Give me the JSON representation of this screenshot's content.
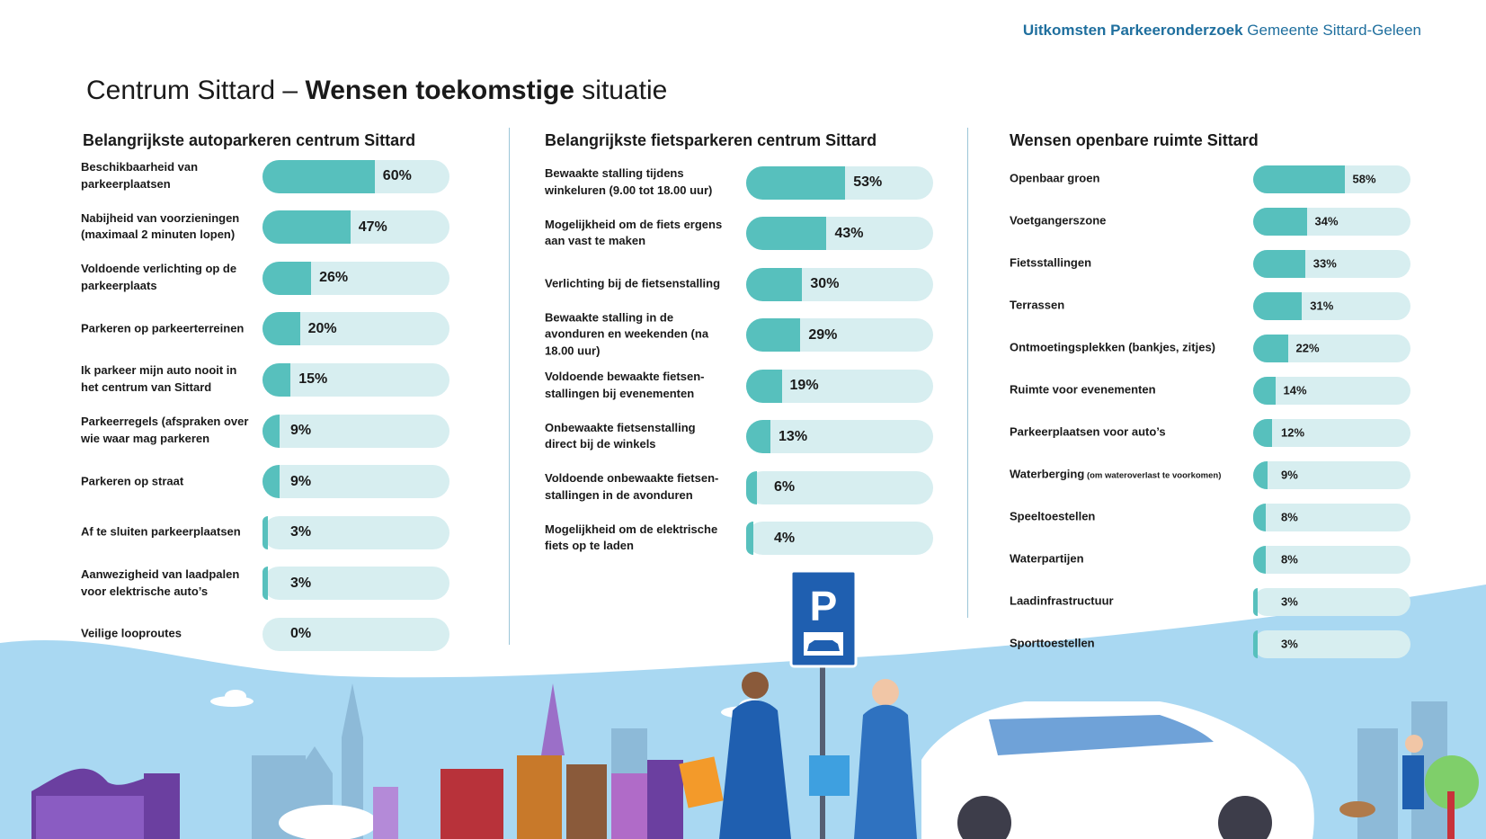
{
  "header": {
    "bold": "Uitkomsten Parkeeronderzoek",
    "regular": "Gemeente Sittard-Geleen"
  },
  "title": {
    "part1": "Centrum Sittard – ",
    "bold": "Wensen toekomstige",
    "part2": " situatie"
  },
  "colors": {
    "fill": "#57c0bd",
    "track": "#d7eef0",
    "header": "#1f6f9e",
    "sky": "#a9d8f2"
  },
  "chart_data": [
    {
      "type": "bar",
      "title": "Belangrijkste autoparkeren centrum Sittard",
      "categories": [
        "Beschikbaarheid van parkeerplaatsen",
        "Nabijheid van voorzieningen (maximaal 2 minuten lopen)",
        "Voldoende verlichting op de parkeerplaats",
        "Parkeren op parkeerterreinen",
        "Ik parkeer mijn auto nooit in het centrum van Sittard",
        "Parkeerregels (afspraken over wie waar mag parkeren",
        "Parkeren op straat",
        "Af te sluiten parkeerplaatsen",
        "Aanwezigheid van laadpalen voor elektrische auto’s",
        "Veilige looproutes"
      ],
      "values": [
        60,
        47,
        26,
        20,
        15,
        9,
        9,
        3,
        3,
        0
      ],
      "labels": [
        "60%",
        "47%",
        "26%",
        "20%",
        "15%",
        "9%",
        "9%",
        "3%",
        "3%",
        "0%"
      ],
      "ylim": [
        0,
        100
      ]
    },
    {
      "type": "bar",
      "title": "Belangrijkste fietsparkeren centrum Sittard",
      "categories": [
        "Bewaakte stalling tijdens winkeluren (9.00 tot 18.00 uur)",
        "Mogelijkheid om de fiets ergens aan vast te maken",
        "Verlichting bij de fietsenstalling",
        "Bewaakte stalling in de avonduren en weekenden (na 18.00 uur)",
        "Voldoende bewaakte fietsen-stallingen bij evenementen",
        "Onbewaakte fietsenstalling direct bij de winkels",
        "Voldoende onbewaakte fietsen-stallingen in de avonduren",
        "Mogelijkheid om de elektrische fiets op te laden"
      ],
      "values": [
        53,
        43,
        30,
        29,
        19,
        13,
        6,
        4
      ],
      "labels": [
        "53%",
        "43%",
        "30%",
        "29%",
        "19%",
        "13%",
        "6%",
        "4%"
      ],
      "ylim": [
        0,
        100
      ]
    },
    {
      "type": "bar",
      "title": "Wensen openbare ruimte Sittard",
      "categories": [
        "Openbaar groen",
        "Voetgangerszone",
        "Fietsstallingen",
        "Terrassen",
        "Ontmoetingsplekken (bankjes, zitjes)",
        "Ruimte voor evenementen",
        "Parkeerplaatsen voor auto’s",
        "Waterberging",
        "Speeltoestellen",
        "Waterpartijen",
        "Laadinfrastructuur",
        "Sporttoestellen"
      ],
      "notes": [
        "",
        "",
        "",
        "",
        "",
        "",
        "",
        "(om wateroverlast te voorkomen)",
        "",
        "",
        "",
        ""
      ],
      "values": [
        58,
        34,
        33,
        31,
        22,
        14,
        12,
        9,
        8,
        8,
        3,
        3
      ],
      "labels": [
        "58%",
        "34%",
        "33%",
        "31%",
        "22%",
        "14%",
        "12%",
        "9%",
        "8%",
        "8%",
        "3%",
        "3%"
      ],
      "ylim": [
        0,
        100
      ]
    }
  ]
}
